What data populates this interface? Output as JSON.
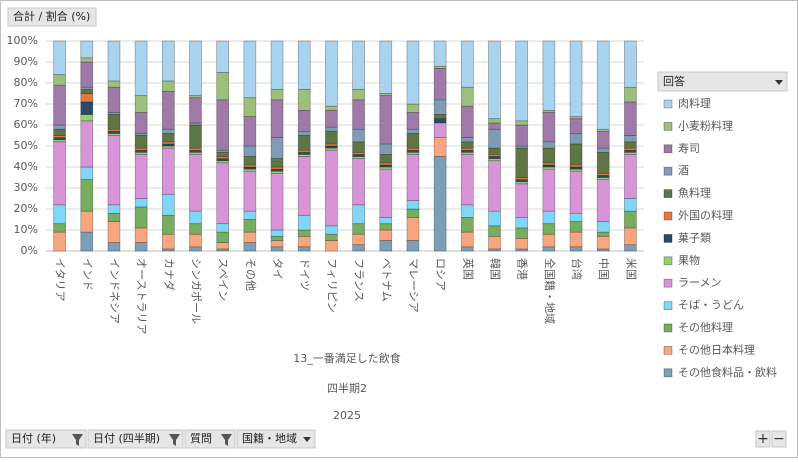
{
  "chart_data": {
    "type": "bar",
    "stacked": true,
    "categories": [
      "イタリア",
      "インド",
      "インドネシア",
      "オーストラリア",
      "カナダ",
      "シンガポール",
      "スペイン",
      "その他",
      "タイ",
      "ドイツ",
      "フィリピン",
      "フランス",
      "ベトナム",
      "マレーシア",
      "ロシア",
      "英国",
      "韓国",
      "香港",
      "全国籍・地域",
      "台湾",
      "中国",
      "米国"
    ],
    "series": [
      {
        "name": "肉料理",
        "color": "#a9d3ef",
        "values": [
          16,
          8,
          19,
          26,
          19,
          26,
          15,
          27,
          23,
          23,
          31,
          23,
          25,
          30,
          12,
          22,
          37,
          38,
          33,
          36,
          42,
          22
        ]
      },
      {
        "name": "小麦粉料理",
        "color": "#9cbf7c",
        "values": [
          5,
          2,
          3,
          8,
          5,
          1,
          13,
          9,
          5,
          10,
          2,
          5,
          1,
          4,
          1,
          9,
          2,
          2,
          1,
          1,
          1,
          7
        ]
      },
      {
        "name": "寿司",
        "color": "#9f7aa8",
        "values": [
          19,
          12,
          12,
          10,
          18,
          12,
          24,
          14,
          18,
          10,
          8,
          14,
          23,
          8,
          15,
          15,
          3,
          10,
          14,
          7,
          8,
          16
        ]
      },
      {
        "name": "酒",
        "color": "#7f9bb5",
        "values": [
          2,
          1,
          1,
          1,
          2,
          1,
          1,
          5,
          10,
          2,
          2,
          6,
          5,
          2,
          7,
          2,
          9,
          1,
          3,
          5,
          2,
          3
        ]
      },
      {
        "name": "魚料理",
        "color": "#5f7544",
        "values": [
          3,
          2,
          7,
          6,
          4,
          11,
          2,
          4,
          4,
          7,
          6,
          5,
          4,
          7,
          2,
          3,
          3,
          14,
          7,
          10,
          10,
          3
        ]
      },
      {
        "name": "外国の料理",
        "color": "#e5773a",
        "values": [
          1,
          4,
          1,
          1,
          1,
          1,
          1,
          1,
          1,
          1,
          1,
          1,
          1,
          1,
          0,
          1,
          1,
          1,
          1,
          1,
          1,
          1
        ]
      },
      {
        "name": "菓子類",
        "color": "#2b4a6b",
        "values": [
          1,
          6,
          1,
          1,
          1,
          1,
          1,
          1,
          1,
          1,
          1,
          1,
          1,
          1,
          2,
          1,
          1,
          1,
          1,
          1,
          1,
          1
        ]
      },
      {
        "name": "果物",
        "color": "#93d36f",
        "values": [
          1,
          3,
          1,
          1,
          1,
          1,
          1,
          1,
          1,
          1,
          1,
          1,
          1,
          1,
          0,
          1,
          1,
          1,
          1,
          1,
          1,
          1
        ]
      },
      {
        "name": "ラーメン",
        "color": "#d795d8",
        "values": [
          30,
          22,
          33,
          21,
          22,
          27,
          29,
          19,
          27,
          28,
          36,
          22,
          23,
          22,
          7,
          24,
          24,
          16,
          20,
          20,
          20,
          21
        ]
      },
      {
        "name": "そば・うどん",
        "color": "#7fd6f7",
        "values": [
          9,
          6,
          4,
          4,
          10,
          6,
          4,
          4,
          3,
          7,
          4,
          9,
          3,
          4,
          0,
          6,
          7,
          5,
          6,
          4,
          5,
          6
        ]
      },
      {
        "name": "その他料理",
        "color": "#76ad5e",
        "values": [
          4,
          15,
          4,
          10,
          9,
          5,
          5,
          6,
          2,
          3,
          3,
          5,
          3,
          4,
          0,
          7,
          5,
          5,
          5,
          5,
          2,
          8
        ]
      },
      {
        "name": "その他日本料理",
        "color": "#f8a680",
        "values": [
          9,
          10,
          10,
          7,
          7,
          6,
          3,
          5,
          3,
          5,
          5,
          5,
          5,
          11,
          9,
          7,
          6,
          5,
          6,
          7,
          6,
          8
        ]
      },
      {
        "name": "その他食料品・飲料",
        "color": "#7b9fb7",
        "values": [
          0,
          9,
          4,
          4,
          1,
          2,
          1,
          4,
          2,
          2,
          0,
          3,
          5,
          5,
          45,
          2,
          1,
          1,
          2,
          2,
          1,
          3
        ]
      }
    ],
    "ylim": [
      0,
      100
    ],
    "yticks": [
      {
        "value": 0,
        "label": "0%"
      },
      {
        "value": 10,
        "label": "10%"
      },
      {
        "value": 20,
        "label": "20%"
      },
      {
        "value": 30,
        "label": "30%"
      },
      {
        "value": 40,
        "label": "40%"
      },
      {
        "value": 50,
        "label": "50%"
      },
      {
        "value": 60,
        "label": "60%"
      },
      {
        "value": 70,
        "label": "70%"
      },
      {
        "value": 80,
        "label": "80%"
      },
      {
        "value": 90,
        "label": "90%"
      },
      {
        "value": 100,
        "label": "100%"
      }
    ],
    "grid": true,
    "legend_title": "回答",
    "x_field_labels": [
      "13_一番満足した飲食",
      "四半期2",
      "2025"
    ]
  },
  "value_field_button": "合計 / 割合 (%)",
  "filter_buttons": [
    "日付 (年)",
    "日付 (四半期)",
    "質問",
    "国籍・地域"
  ],
  "zoom_buttons": [
    "+",
    "−"
  ]
}
